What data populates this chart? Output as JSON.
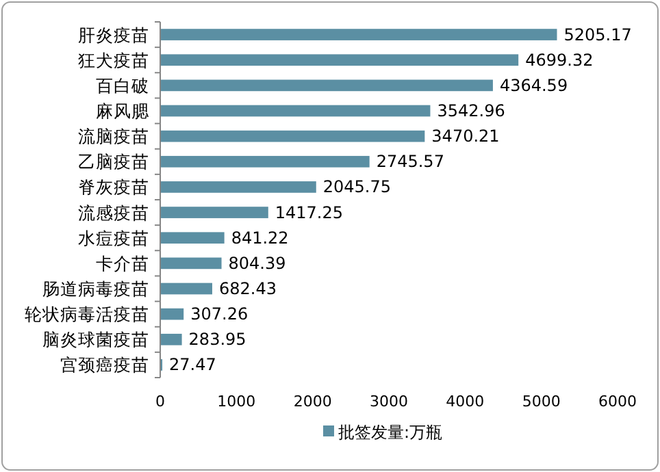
{
  "chart_data": {
    "type": "bar",
    "orientation": "horizontal",
    "categories": [
      "肝炎疫苗",
      "狂犬疫苗",
      "百白破",
      "麻风腮",
      "流脑疫苗",
      "乙脑疫苗",
      "脊灰疫苗",
      "流感疫苗",
      "水痘疫苗",
      "卡介苗",
      "肠道病毒疫苗",
      "轮状病毒活疫苗",
      "脑炎球菌疫苗",
      "宫颈癌疫苗"
    ],
    "series": [
      {
        "name": "批签发量:万瓶",
        "color": "#5b8fa3",
        "values": [
          5205.17,
          4699.32,
          4364.59,
          3542.96,
          3470.21,
          2745.57,
          2045.75,
          1417.25,
          841.22,
          804.39,
          682.43,
          307.26,
          283.95,
          27.47
        ]
      }
    ],
    "xlim": [
      0,
      6000
    ],
    "xticks": [
      0,
      1000,
      2000,
      3000,
      4000,
      5000,
      6000
    ],
    "data_labels": true,
    "legend": "bottom",
    "grid": false
  }
}
